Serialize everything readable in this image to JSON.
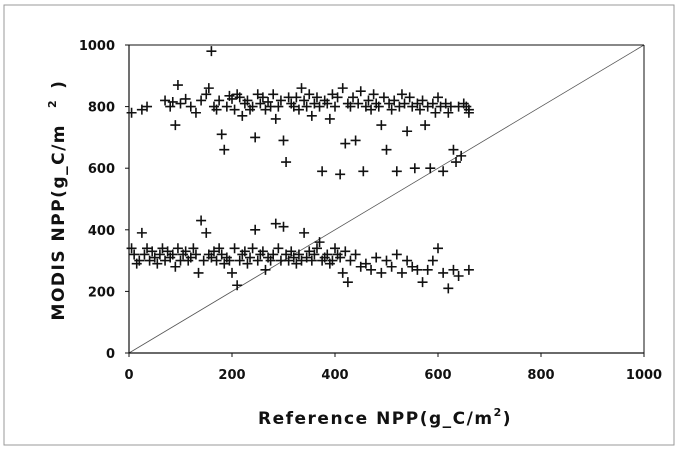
{
  "chart_data": {
    "type": "scatter",
    "title": "",
    "xlabel_main": "Reference NPP(g_C/m",
    "xlabel_sup": "2",
    "xlabel_end": ")",
    "ylabel_main": "MODIS NPP(g_C/m",
    "ylabel_sup": "2",
    "ylabel_end": ")",
    "xlim": [
      0,
      1000
    ],
    "ylim": [
      0,
      1000
    ],
    "x_ticks": [
      0,
      200,
      400,
      600,
      800,
      1000
    ],
    "y_ticks": [
      0,
      200,
      400,
      600,
      800,
      1000
    ],
    "x_tick_labels": [
      "0",
      "200",
      "400",
      "600",
      "800",
      "1000"
    ],
    "y_tick_labels": [
      "0",
      "200",
      "400",
      "600",
      "800",
      "1000"
    ],
    "grid": false,
    "legend": "none",
    "marker": "plus",
    "reference_line": {
      "type": "1:1",
      "from": [
        0,
        0
      ],
      "to": [
        1000,
        1000
      ]
    },
    "series": [
      {
        "points": [
          [
            5,
            780
          ],
          [
            25,
            790
          ],
          [
            35,
            800
          ],
          [
            70,
            820
          ],
          [
            80,
            800
          ],
          [
            85,
            815
          ],
          [
            90,
            740
          ],
          [
            95,
            870
          ],
          [
            100,
            810
          ],
          [
            110,
            825
          ],
          [
            120,
            800
          ],
          [
            130,
            780
          ],
          [
            140,
            820
          ],
          [
            150,
            840
          ],
          [
            155,
            860
          ],
          [
            160,
            980
          ],
          [
            165,
            800
          ],
          [
            170,
            790
          ],
          [
            175,
            820
          ],
          [
            180,
            710
          ],
          [
            185,
            660
          ],
          [
            190,
            800
          ],
          [
            195,
            835
          ],
          [
            200,
            825
          ],
          [
            205,
            790
          ],
          [
            210,
            840
          ],
          [
            215,
            830
          ],
          [
            220,
            770
          ],
          [
            225,
            810
          ],
          [
            230,
            820
          ],
          [
            235,
            790
          ],
          [
            240,
            800
          ],
          [
            245,
            700
          ],
          [
            250,
            840
          ],
          [
            255,
            810
          ],
          [
            260,
            830
          ],
          [
            265,
            790
          ],
          [
            270,
            815
          ],
          [
            275,
            800
          ],
          [
            280,
            840
          ],
          [
            285,
            760
          ],
          [
            290,
            800
          ],
          [
            295,
            820
          ],
          [
            300,
            690
          ],
          [
            305,
            620
          ],
          [
            310,
            830
          ],
          [
            315,
            810
          ],
          [
            320,
            800
          ],
          [
            325,
            830
          ],
          [
            330,
            790
          ],
          [
            335,
            860
          ],
          [
            340,
            820
          ],
          [
            345,
            800
          ],
          [
            350,
            840
          ],
          [
            355,
            770
          ],
          [
            360,
            810
          ],
          [
            365,
            830
          ],
          [
            370,
            800
          ],
          [
            375,
            590
          ],
          [
            380,
            820
          ],
          [
            385,
            810
          ],
          [
            390,
            760
          ],
          [
            395,
            840
          ],
          [
            400,
            800
          ],
          [
            405,
            830
          ],
          [
            410,
            580
          ],
          [
            415,
            860
          ],
          [
            420,
            680
          ],
          [
            425,
            810
          ],
          [
            430,
            800
          ],
          [
            435,
            830
          ],
          [
            440,
            690
          ],
          [
            445,
            810
          ],
          [
            450,
            850
          ],
          [
            455,
            590
          ],
          [
            460,
            800
          ],
          [
            465,
            820
          ],
          [
            470,
            790
          ],
          [
            475,
            840
          ],
          [
            480,
            810
          ],
          [
            485,
            800
          ],
          [
            490,
            740
          ],
          [
            495,
            830
          ],
          [
            500,
            660
          ],
          [
            505,
            810
          ],
          [
            510,
            790
          ],
          [
            515,
            820
          ],
          [
            520,
            590
          ],
          [
            525,
            800
          ],
          [
            530,
            840
          ],
          [
            535,
            810
          ],
          [
            540,
            720
          ],
          [
            545,
            830
          ],
          [
            550,
            800
          ],
          [
            555,
            600
          ],
          [
            560,
            810
          ],
          [
            565,
            790
          ],
          [
            570,
            820
          ],
          [
            575,
            740
          ],
          [
            580,
            800
          ],
          [
            585,
            600
          ],
          [
            590,
            810
          ],
          [
            595,
            780
          ],
          [
            600,
            830
          ],
          [
            605,
            800
          ],
          [
            610,
            590
          ],
          [
            615,
            810
          ],
          [
            620,
            780
          ],
          [
            625,
            800
          ],
          [
            630,
            660
          ],
          [
            635,
            620
          ],
          [
            640,
            800
          ],
          [
            645,
            640
          ],
          [
            650,
            810
          ],
          [
            655,
            800
          ],
          [
            660,
            790
          ],
          [
            660,
            780
          ],
          [
            5,
            340
          ],
          [
            10,
            320
          ],
          [
            15,
            290
          ],
          [
            20,
            300
          ],
          [
            25,
            390
          ],
          [
            30,
            320
          ],
          [
            35,
            340
          ],
          [
            40,
            300
          ],
          [
            45,
            330
          ],
          [
            50,
            310
          ],
          [
            55,
            290
          ],
          [
            60,
            320
          ],
          [
            65,
            340
          ],
          [
            70,
            300
          ],
          [
            75,
            330
          ],
          [
            80,
            310
          ],
          [
            85,
            320
          ],
          [
            90,
            280
          ],
          [
            95,
            340
          ],
          [
            100,
            300
          ],
          [
            105,
            320
          ],
          [
            110,
            330
          ],
          [
            115,
            300
          ],
          [
            120,
            310
          ],
          [
            125,
            340
          ],
          [
            130,
            320
          ],
          [
            135,
            260
          ],
          [
            140,
            430
          ],
          [
            145,
            300
          ],
          [
            150,
            390
          ],
          [
            155,
            320
          ],
          [
            160,
            310
          ],
          [
            165,
            330
          ],
          [
            170,
            300
          ],
          [
            175,
            340
          ],
          [
            180,
            320
          ],
          [
            185,
            290
          ],
          [
            190,
            310
          ],
          [
            195,
            300
          ],
          [
            200,
            260
          ],
          [
            205,
            340
          ],
          [
            210,
            220
          ],
          [
            215,
            300
          ],
          [
            220,
            320
          ],
          [
            225,
            330
          ],
          [
            230,
            290
          ],
          [
            235,
            310
          ],
          [
            240,
            340
          ],
          [
            245,
            400
          ],
          [
            250,
            300
          ],
          [
            255,
            320
          ],
          [
            260,
            330
          ],
          [
            265,
            270
          ],
          [
            270,
            310
          ],
          [
            275,
            300
          ],
          [
            280,
            320
          ],
          [
            285,
            420
          ],
          [
            290,
            340
          ],
          [
            295,
            300
          ],
          [
            300,
            410
          ],
          [
            305,
            320
          ],
          [
            310,
            300
          ],
          [
            315,
            330
          ],
          [
            320,
            310
          ],
          [
            325,
            290
          ],
          [
            330,
            320
          ],
          [
            335,
            300
          ],
          [
            340,
            390
          ],
          [
            345,
            310
          ],
          [
            350,
            330
          ],
          [
            355,
            300
          ],
          [
            360,
            320
          ],
          [
            365,
            340
          ],
          [
            370,
            360
          ],
          [
            375,
            300
          ],
          [
            380,
            310
          ],
          [
            385,
            320
          ],
          [
            390,
            290
          ],
          [
            395,
            300
          ],
          [
            400,
            340
          ],
          [
            405,
            320
          ],
          [
            410,
            310
          ],
          [
            415,
            260
          ],
          [
            420,
            330
          ],
          [
            425,
            230
          ],
          [
            430,
            300
          ],
          [
            440,
            320
          ],
          [
            450,
            280
          ],
          [
            460,
            290
          ],
          [
            470,
            270
          ],
          [
            480,
            310
          ],
          [
            490,
            260
          ],
          [
            500,
            300
          ],
          [
            510,
            280
          ],
          [
            520,
            320
          ],
          [
            530,
            260
          ],
          [
            540,
            300
          ],
          [
            550,
            280
          ],
          [
            560,
            270
          ],
          [
            570,
            230
          ],
          [
            580,
            270
          ],
          [
            590,
            300
          ],
          [
            600,
            340
          ],
          [
            610,
            260
          ],
          [
            620,
            210
          ],
          [
            630,
            270
          ],
          [
            640,
            250
          ],
          [
            660,
            270
          ]
        ]
      }
    ]
  }
}
